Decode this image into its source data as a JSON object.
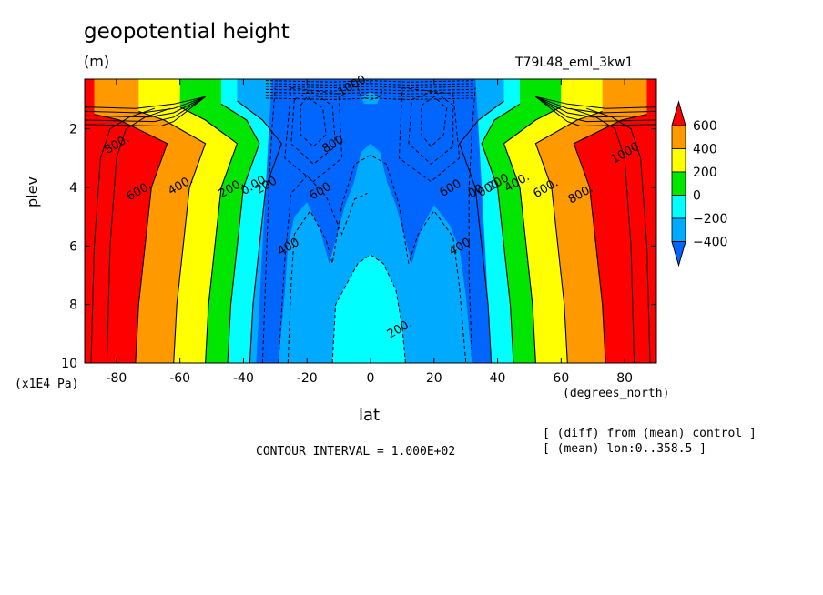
{
  "header": {
    "title": "geopotential height",
    "units": "(m)",
    "run_name": "T79L48_eml_3kw1"
  },
  "axes": {
    "ylabel": "plev",
    "yunit": "(x1E4 Pa)",
    "xlabel": "lat",
    "xunit": "(degrees_north)"
  },
  "footer": {
    "contour_interval": "CONTOUR INTERVAL = 1.000E+02",
    "note_diff": "[ (diff) from (mean) control ]",
    "note_mean": "[ (mean) lon:0..358.5 ]"
  },
  "colors": {
    "red": "#ff0000",
    "orange": "#ff9900",
    "yellow": "#ffff00",
    "green": "#00e600",
    "cyan": "#00ffff",
    "lightblue": "#00aaff",
    "blue": "#0066ff"
  },
  "chart_data": {
    "type": "heatmap",
    "subtype": "filled-contour",
    "xlim": [
      -90,
      90
    ],
    "ylim": [
      10,
      0.3
    ],
    "xticks": [
      "-80",
      "-60",
      "-40",
      "-20",
      "0",
      "20",
      "40",
      "60",
      "80"
    ],
    "xtick_values": [
      -80,
      -60,
      -40,
      -20,
      0,
      20,
      40,
      60,
      80
    ],
    "yticks": [
      "2",
      "4",
      "6",
      "8",
      "10"
    ],
    "ytick_values": [
      2,
      4,
      6,
      8,
      10
    ],
    "colorbar": {
      "labels": [
        "600",
        "400",
        "200",
        "0",
        "−200",
        "−400"
      ],
      "levels": [
        600,
        400,
        200,
        0,
        -200,
        -400
      ],
      "colors": [
        "#ff0000",
        "#ff9900",
        "#ffff00",
        "#00e600",
        "#00ffff",
        "#00aaff",
        "#0066ff"
      ]
    },
    "contour_labels": [
      {
        "text": "800.",
        "lat": -80,
        "plev": 2.5
      },
      {
        "text": "600.",
        "lat": -73,
        "plev": 4.1
      },
      {
        "text": "400.",
        "lat": -60,
        "plev": 3.9
      },
      {
        "text": "200.",
        "lat": -44,
        "plev": 4.0
      },
      {
        "text": "0.00",
        "lat": -37,
        "plev": 3.9
      },
      {
        "text": "200",
        "lat": -33,
        "plev": 3.9
      },
      {
        "text": "600",
        "lat": -16,
        "plev": 4.1
      },
      {
        "text": "800",
        "lat": -12,
        "plev": 2.5
      },
      {
        "text": "400",
        "lat": -26,
        "plev": 6.0
      },
      {
        "text": "1000",
        "lat": -6,
        "plev": 0.5
      },
      {
        "text": "200.",
        "lat": 9,
        "plev": 8.8
      },
      {
        "text": "600",
        "lat": 25,
        "plev": 4.0
      },
      {
        "text": "400",
        "lat": 28,
        "plev": 6.0
      },
      {
        "text": "00",
        "lat": 33,
        "plev": 4.1
      },
      {
        "text": "000",
        "lat": 37,
        "plev": 4.0
      },
      {
        "text": "200",
        "lat": 40,
        "plev": 3.8
      },
      {
        "text": "400.",
        "lat": 46,
        "plev": 3.8
      },
      {
        "text": "600.",
        "lat": 55,
        "plev": 4.0
      },
      {
        "text": "800.",
        "lat": 66,
        "plev": 4.2
      },
      {
        "text": "1000",
        "lat": 80,
        "plev": 2.8
      }
    ]
  }
}
